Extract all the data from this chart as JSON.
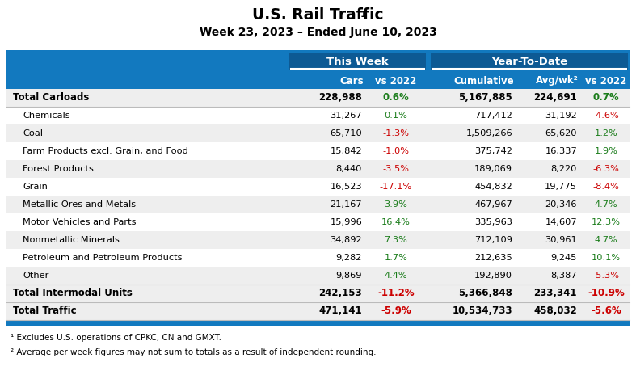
{
  "title": "U.S. Rail Traffic",
  "subtitle": "Week 23, 2023 – Ended June 10, 2023",
  "header_group1": "This Week",
  "header_group2": "Year-To-Date",
  "rows": [
    {
      "label": "Total Carloads",
      "bold": true,
      "indent": false,
      "cars": "228,988",
      "vs2022_tw": "0.6%",
      "vs2022_tw_color": "green",
      "cumulative": "5,167,885",
      "avgwk": "224,691",
      "vs2022_ytd": "0.7%",
      "vs2022_ytd_color": "green",
      "bg": "#eeeeee"
    },
    {
      "label": "Chemicals",
      "bold": false,
      "indent": true,
      "cars": "31,267",
      "vs2022_tw": "0.1%",
      "vs2022_tw_color": "green",
      "cumulative": "717,412",
      "avgwk": "31,192",
      "vs2022_ytd": "-4.6%",
      "vs2022_ytd_color": "red",
      "bg": "#ffffff"
    },
    {
      "label": "Coal",
      "bold": false,
      "indent": true,
      "cars": "65,710",
      "vs2022_tw": "-1.3%",
      "vs2022_tw_color": "red",
      "cumulative": "1,509,266",
      "avgwk": "65,620",
      "vs2022_ytd": "1.2%",
      "vs2022_ytd_color": "green",
      "bg": "#eeeeee"
    },
    {
      "label": "Farm Products excl. Grain, and Food",
      "bold": false,
      "indent": true,
      "cars": "15,842",
      "vs2022_tw": "-1.0%",
      "vs2022_tw_color": "red",
      "cumulative": "375,742",
      "avgwk": "16,337",
      "vs2022_ytd": "1.9%",
      "vs2022_ytd_color": "green",
      "bg": "#ffffff"
    },
    {
      "label": "Forest Products",
      "bold": false,
      "indent": true,
      "cars": "8,440",
      "vs2022_tw": "-3.5%",
      "vs2022_tw_color": "red",
      "cumulative": "189,069",
      "avgwk": "8,220",
      "vs2022_ytd": "-6.3%",
      "vs2022_ytd_color": "red",
      "bg": "#eeeeee"
    },
    {
      "label": "Grain",
      "bold": false,
      "indent": true,
      "cars": "16,523",
      "vs2022_tw": "-17.1%",
      "vs2022_tw_color": "red",
      "cumulative": "454,832",
      "avgwk": "19,775",
      "vs2022_ytd": "-8.4%",
      "vs2022_ytd_color": "red",
      "bg": "#ffffff"
    },
    {
      "label": "Metallic Ores and Metals",
      "bold": false,
      "indent": true,
      "cars": "21,167",
      "vs2022_tw": "3.9%",
      "vs2022_tw_color": "green",
      "cumulative": "467,967",
      "avgwk": "20,346",
      "vs2022_ytd": "4.7%",
      "vs2022_ytd_color": "green",
      "bg": "#eeeeee"
    },
    {
      "label": "Motor Vehicles and Parts",
      "bold": false,
      "indent": true,
      "cars": "15,996",
      "vs2022_tw": "16.4%",
      "vs2022_tw_color": "green",
      "cumulative": "335,963",
      "avgwk": "14,607",
      "vs2022_ytd": "12.3%",
      "vs2022_ytd_color": "green",
      "bg": "#ffffff"
    },
    {
      "label": "Nonmetallic Minerals",
      "bold": false,
      "indent": true,
      "cars": "34,892",
      "vs2022_tw": "7.3%",
      "vs2022_tw_color": "green",
      "cumulative": "712,109",
      "avgwk": "30,961",
      "vs2022_ytd": "4.7%",
      "vs2022_ytd_color": "green",
      "bg": "#eeeeee"
    },
    {
      "label": "Petroleum and Petroleum Products",
      "bold": false,
      "indent": true,
      "cars": "9,282",
      "vs2022_tw": "1.7%",
      "vs2022_tw_color": "green",
      "cumulative": "212,635",
      "avgwk": "9,245",
      "vs2022_ytd": "10.1%",
      "vs2022_ytd_color": "green",
      "bg": "#ffffff"
    },
    {
      "label": "Other",
      "bold": false,
      "indent": true,
      "cars": "9,869",
      "vs2022_tw": "4.4%",
      "vs2022_tw_color": "green",
      "cumulative": "192,890",
      "avgwk": "8,387",
      "vs2022_ytd": "-5.3%",
      "vs2022_ytd_color": "red",
      "bg": "#eeeeee"
    },
    {
      "label": "Total Intermodal Units",
      "bold": true,
      "indent": false,
      "cars": "242,153",
      "vs2022_tw": "-11.2%",
      "vs2022_tw_color": "red",
      "cumulative": "5,366,848",
      "avgwk": "233,341",
      "vs2022_ytd": "-10.9%",
      "vs2022_ytd_color": "red",
      "bg": "#eeeeee"
    },
    {
      "label": "Total Traffic",
      "bold": true,
      "indent": false,
      "cars": "471,141",
      "vs2022_tw": "-5.9%",
      "vs2022_tw_color": "red",
      "cumulative": "10,534,733",
      "avgwk": "458,032",
      "vs2022_ytd": "-5.6%",
      "vs2022_ytd_color": "red",
      "bg": "#eeeeee"
    }
  ],
  "footnotes": [
    "¹ Excludes U.S. operations of CPKC, CN and GMXT.",
    "² Average per week figures may not sum to totals as a result of independent rounding."
  ],
  "header_blue": "#1279bf",
  "header_dark_blue": "#0d5a94",
  "green_color": "#1a7c1a",
  "red_color": "#cc0000"
}
